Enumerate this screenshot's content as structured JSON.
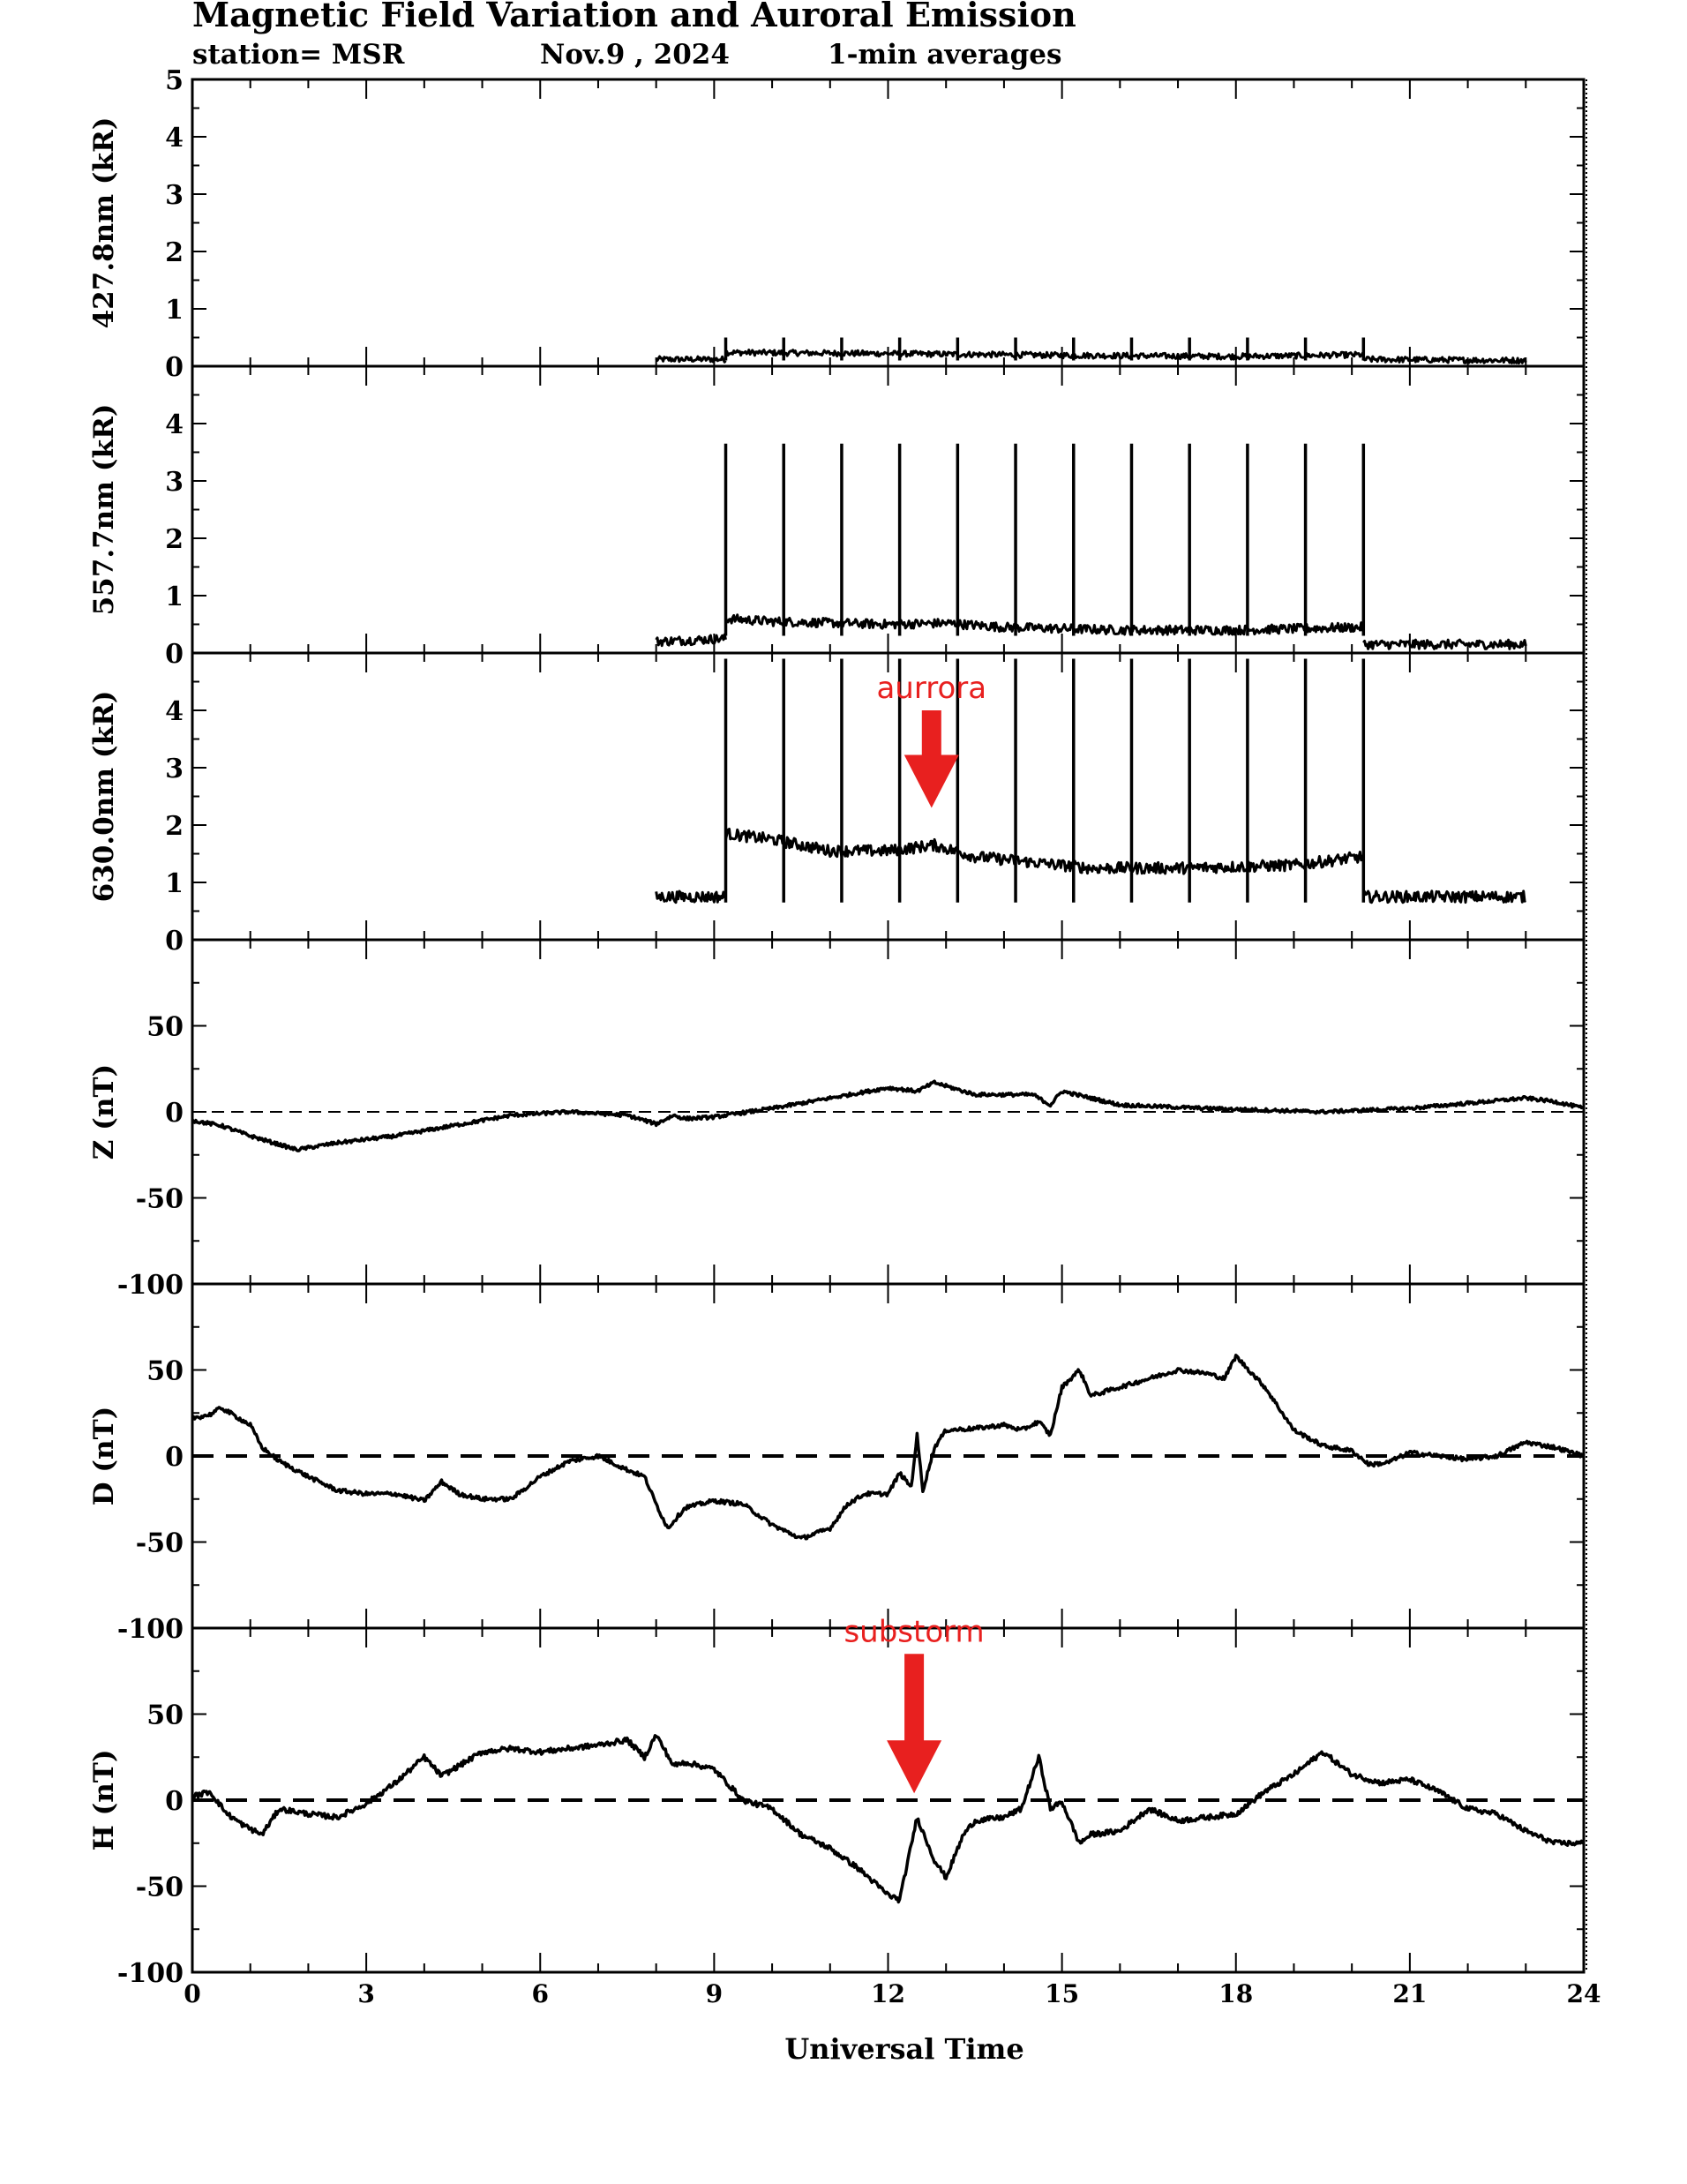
{
  "header": {
    "title": "Magnetic Field Variation and Auroral Emission",
    "station": "station= MSR",
    "date": "Nov.9 , 2024",
    "averaging": "1-min averages"
  },
  "colors": {
    "trace": "#000000",
    "annotation": "#e8201f"
  },
  "chart_data": [
    {
      "type": "line",
      "id": "em4278",
      "ylabel": "427.8nm (kR)",
      "ylim": [
        0,
        5
      ],
      "yticks": [
        0,
        1,
        2,
        3,
        4,
        5
      ],
      "xlim": [
        0,
        24
      ],
      "series": [
        {
          "values_desc": "",
          "x": [
            8.0,
            9.2,
            9.25,
            24.0
          ],
          "y": [
            0.12,
            0.12,
            0.22,
            0.1
          ]
        }
      ],
      "spikes": {
        "x": [
          9.2,
          10.2,
          11.2,
          12.2,
          13.2,
          14.2,
          15.2,
          16.2,
          17.2,
          18.2,
          19.2,
          20.2
        ],
        "ymin": 0.1,
        "ymax": 0.5
      },
      "segments": [
        {
          "x": [
            8.0,
            9.2
          ],
          "y": [
            0.12,
            0.12
          ]
        },
        {
          "x": [
            9.2,
            12.0,
            15.0,
            18.0,
            20.2
          ],
          "y": [
            0.24,
            0.22,
            0.19,
            0.17,
            0.2
          ]
        },
        {
          "x": [
            20.2,
            23.0
          ],
          "y": [
            0.12,
            0.1
          ]
        }
      ],
      "noise": 0.05
    },
    {
      "type": "line",
      "id": "em5577",
      "ylabel": "557.7nm (kR)",
      "ylim": [
        0,
        5
      ],
      "yticks": [
        0,
        1,
        2,
        3,
        4
      ],
      "xlim": [
        0,
        24
      ],
      "spikes": {
        "x": [
          9.2,
          10.2,
          11.2,
          12.2,
          13.2,
          14.2,
          15.2,
          16.2,
          17.2,
          18.2,
          19.2,
          20.2
        ],
        "ymin": 0.3,
        "ymax": 3.65
      },
      "segments": [
        {
          "x": [
            8.0,
            9.2
          ],
          "y": [
            0.2,
            0.25
          ]
        },
        {
          "x": [
            9.2,
            10.0,
            12.0,
            13.0,
            14.0,
            16.0,
            18.0,
            20.2
          ],
          "y": [
            0.6,
            0.55,
            0.5,
            0.52,
            0.45,
            0.4,
            0.4,
            0.45
          ]
        },
        {
          "x": [
            20.2,
            23.0
          ],
          "y": [
            0.15,
            0.15
          ]
        }
      ],
      "noise": 0.08
    },
    {
      "type": "line",
      "id": "em6300",
      "ylabel": "630.0nm (kR)",
      "ylim": [
        0,
        5
      ],
      "yticks": [
        0,
        1,
        2,
        3,
        4
      ],
      "xlim": [
        0,
        24
      ],
      "spikes": {
        "x": [
          9.2,
          10.2,
          11.2,
          12.2,
          13.2,
          14.2,
          15.2,
          16.2,
          17.2,
          18.2,
          19.2,
          20.2
        ],
        "ymin": 0.65,
        "ymax": 4.9
      },
      "segments": [
        {
          "x": [
            8.0,
            9.2
          ],
          "y": [
            0.75,
            0.75
          ]
        },
        {
          "x": [
            9.2,
            10.0,
            11.0,
            12.0,
            12.8,
            13.5,
            14.5,
            15.5,
            17.0,
            19.0,
            20.2
          ],
          "y": [
            1.85,
            1.75,
            1.55,
            1.55,
            1.65,
            1.45,
            1.35,
            1.25,
            1.25,
            1.3,
            1.45
          ]
        },
        {
          "x": [
            20.2,
            23.0
          ],
          "y": [
            0.75,
            0.75
          ]
        }
      ],
      "noise": 0.1,
      "annotation": {
        "text": "aurrora",
        "x": 12.75,
        "arrow_top": 4.0,
        "arrow_bottom": 2.3
      }
    },
    {
      "type": "line",
      "id": "z",
      "ylabel": "Z (nT)",
      "ylim": [
        -100,
        100
      ],
      "yticks": [
        -100,
        -50,
        0,
        50
      ],
      "xlim": [
        0,
        24
      ],
      "baseline": 0,
      "segments": [
        {
          "x": [
            0,
            0.5,
            1.0,
            1.8,
            2.5,
            3.5,
            4.5,
            5.5,
            6.5,
            7.5,
            8.0,
            8.3,
            8.5,
            9.0,
            10.0,
            11.0,
            12.0,
            12.5,
            12.8,
            13.5,
            14.5,
            14.8,
            15.0,
            16.0,
            17.5,
            18.5,
            19.5,
            21.0,
            22.0,
            23.0,
            23.5,
            24.0
          ],
          "y": [
            -5,
            -8,
            -14,
            -22,
            -18,
            -14,
            -8,
            -2,
            0,
            -2,
            -7,
            -2,
            -4,
            -3,
            2,
            8,
            14,
            12,
            17,
            10,
            10,
            4,
            12,
            4,
            2,
            1,
            0,
            2,
            5,
            8,
            6,
            2
          ]
        }
      ],
      "noise": 1.0
    },
    {
      "type": "line",
      "id": "d",
      "ylabel": "D (nT)",
      "ylim": [
        -100,
        100
      ],
      "yticks": [
        -100,
        -50,
        0,
        50
      ],
      "xlim": [
        0,
        24
      ],
      "baseline": 0,
      "segments": [
        {
          "x": [
            0,
            0.3,
            0.5,
            0.8,
            1.0,
            1.2,
            1.5,
            2.0,
            2.5,
            3.0,
            3.5,
            4.0,
            4.3,
            4.6,
            5.0,
            5.5,
            6.0,
            6.5,
            7.0,
            7.5,
            7.8,
            8.0,
            8.2,
            8.5,
            9.0,
            9.5,
            10.0,
            10.5,
            11.0,
            11.3,
            11.6,
            12.0,
            12.2,
            12.4,
            12.5,
            12.6,
            12.8,
            13.0,
            13.5,
            14.0,
            14.3,
            14.6,
            14.8,
            15.0,
            15.3,
            15.5,
            16.0,
            16.5,
            17.0,
            17.5,
            17.8,
            18.0,
            18.5,
            19.0,
            19.5,
            20.0,
            20.3,
            20.6,
            21.0,
            21.5,
            22.0,
            22.5,
            23.0,
            23.5,
            24.0
          ],
          "y": [
            22,
            24,
            28,
            22,
            18,
            5,
            -3,
            -12,
            -20,
            -22,
            -22,
            -26,
            -15,
            -22,
            -25,
            -25,
            -12,
            -3,
            0,
            -8,
            -12,
            -28,
            -42,
            -30,
            -26,
            -28,
            -40,
            -48,
            -42,
            -28,
            -22,
            -22,
            -10,
            -18,
            12,
            -20,
            5,
            15,
            16,
            18,
            15,
            20,
            12,
            40,
            50,
            35,
            40,
            45,
            50,
            48,
            45,
            58,
            40,
            15,
            6,
            3,
            -5,
            -4,
            2,
            0,
            -2,
            0,
            8,
            5,
            0
          ]
        }
      ],
      "noise": 1.2
    },
    {
      "type": "line",
      "id": "h",
      "ylabel": "H (nT)",
      "ylim": [
        -100,
        100
      ],
      "yticks": [
        -100,
        -50,
        0,
        50
      ],
      "xlim": [
        0,
        24
      ],
      "baseline": 0,
      "segments": [
        {
          "x": [
            0,
            0.3,
            0.6,
            0.9,
            1.2,
            1.5,
            2.0,
            2.5,
            3.0,
            3.5,
            4.0,
            4.3,
            4.6,
            5.0,
            5.5,
            6.0,
            6.5,
            7.0,
            7.5,
            7.8,
            8.0,
            8.3,
            8.5,
            9.0,
            9.5,
            10.0,
            10.5,
            11.0,
            11.5,
            12.0,
            12.2,
            12.5,
            12.8,
            13.0,
            13.3,
            13.5,
            14.0,
            14.3,
            14.6,
            14.8,
            15.0,
            15.3,
            15.5,
            16.0,
            16.5,
            17.0,
            17.5,
            18.0,
            18.5,
            19.0,
            19.5,
            20.0,
            20.5,
            21.0,
            21.5,
            22.0,
            22.5,
            23.0,
            23.5,
            24.0
          ],
          "y": [
            2,
            5,
            -8,
            -15,
            -20,
            -5,
            -8,
            -10,
            -2,
            10,
            25,
            14,
            20,
            28,
            30,
            28,
            30,
            32,
            35,
            25,
            38,
            20,
            22,
            18,
            0,
            -5,
            -20,
            -28,
            -40,
            -55,
            -58,
            -10,
            -35,
            -45,
            -20,
            -12,
            -10,
            -5,
            25,
            -5,
            -1,
            -25,
            -20,
            -18,
            -5,
            -12,
            -10,
            -8,
            5,
            15,
            28,
            15,
            10,
            12,
            5,
            -5,
            -8,
            -18,
            -25,
            -25
          ]
        }
      ],
      "noise": 1.5,
      "annotation": {
        "text": "substorm",
        "x": 12.45,
        "arrow_top": 85,
        "arrow_bottom": 4
      }
    }
  ],
  "x_axis": {
    "label": "Universal Time",
    "ticks": [
      "0",
      "3",
      "6",
      "9",
      "12",
      "15",
      "18",
      "21",
      "24"
    ]
  }
}
